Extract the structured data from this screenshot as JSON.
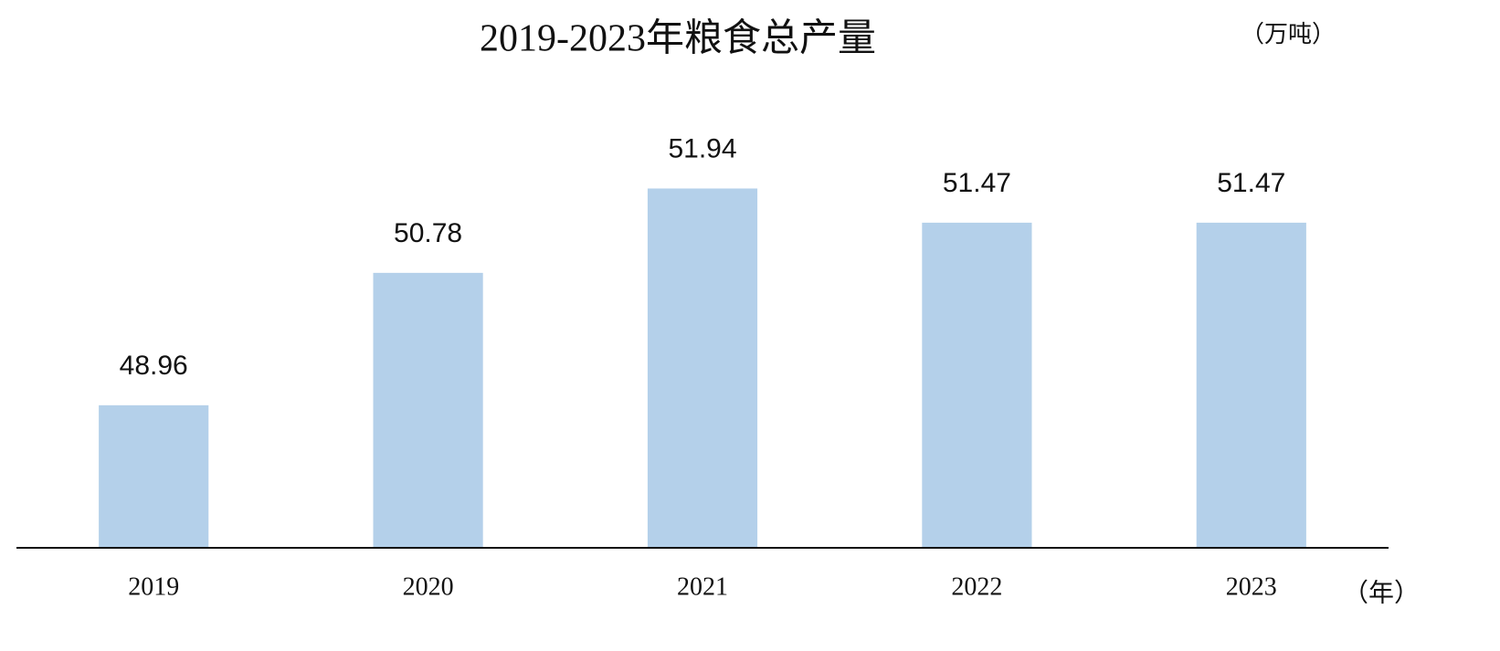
{
  "chart_data": {
    "type": "bar",
    "title": "2019-2023年粮食总产量",
    "unit_label": "（万吨）",
    "x_unit_label": "（年）",
    "categories": [
      "2019",
      "2020",
      "2021",
      "2022",
      "2023"
    ],
    "values": [
      48.96,
      50.78,
      51.94,
      51.47,
      51.47
    ],
    "color": "#b4d0ea",
    "ylim": [
      47,
      53
    ]
  }
}
